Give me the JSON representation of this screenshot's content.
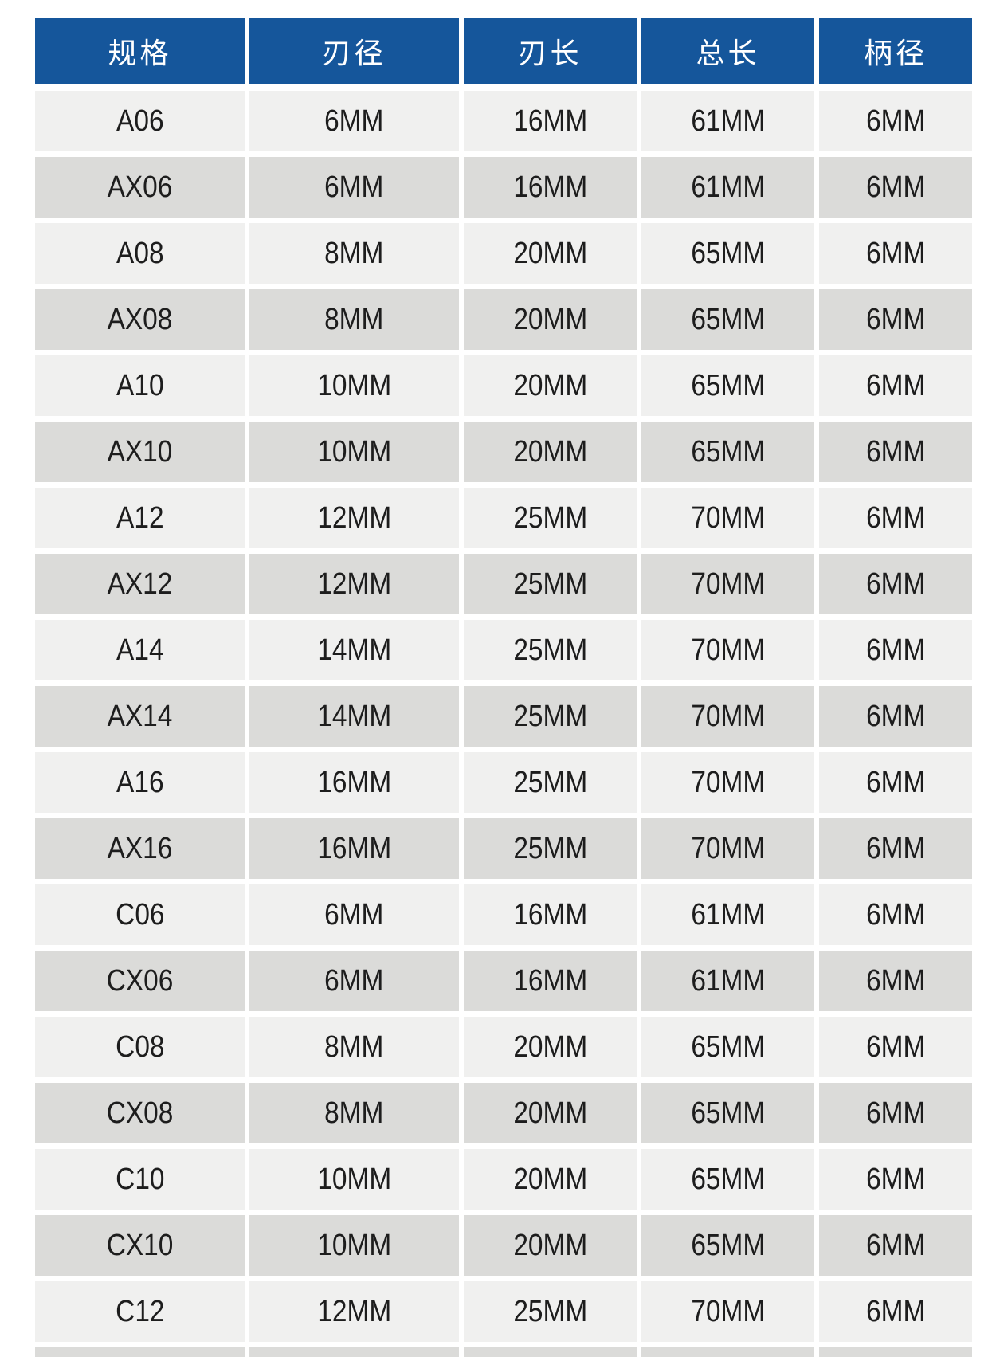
{
  "colors": {
    "header_bg": "#15569B",
    "header_text": "#FFFFFF",
    "row_light": "#F0F0EF",
    "row_dark": "#DBDBD9",
    "cell_text": "#1D1D1D",
    "page_bg": "#FFFFFF"
  },
  "table": {
    "headers": [
      "规格",
      "刃径",
      "刃长",
      "总长",
      "柄径"
    ],
    "rows": [
      [
        "A06",
        "6MM",
        "16MM",
        "61MM",
        "6MM"
      ],
      [
        "AX06",
        "6MM",
        "16MM",
        "61MM",
        "6MM"
      ],
      [
        "A08",
        "8MM",
        "20MM",
        "65MM",
        "6MM"
      ],
      [
        "AX08",
        "8MM",
        "20MM",
        "65MM",
        "6MM"
      ],
      [
        "A10",
        "10MM",
        "20MM",
        "65MM",
        "6MM"
      ],
      [
        "AX10",
        "10MM",
        "20MM",
        "65MM",
        "6MM"
      ],
      [
        "A12",
        "12MM",
        "25MM",
        "70MM",
        "6MM"
      ],
      [
        "AX12",
        "12MM",
        "25MM",
        "70MM",
        "6MM"
      ],
      [
        "A14",
        "14MM",
        "25MM",
        "70MM",
        "6MM"
      ],
      [
        "AX14",
        "14MM",
        "25MM",
        "70MM",
        "6MM"
      ],
      [
        "A16",
        "16MM",
        "25MM",
        "70MM",
        "6MM"
      ],
      [
        "AX16",
        "16MM",
        "25MM",
        "70MM",
        "6MM"
      ],
      [
        "C06",
        "6MM",
        "16MM",
        "61MM",
        "6MM"
      ],
      [
        "CX06",
        "6MM",
        "16MM",
        "61MM",
        "6MM"
      ],
      [
        "C08",
        "8MM",
        "20MM",
        "65MM",
        "6MM"
      ],
      [
        "CX08",
        "8MM",
        "20MM",
        "65MM",
        "6MM"
      ],
      [
        "C10",
        "10MM",
        "20MM",
        "65MM",
        "6MM"
      ],
      [
        "CX10",
        "10MM",
        "20MM",
        "65MM",
        "6MM"
      ],
      [
        "C12",
        "12MM",
        "25MM",
        "70MM",
        "6MM"
      ]
    ],
    "partial_row_at_bottom": true
  }
}
